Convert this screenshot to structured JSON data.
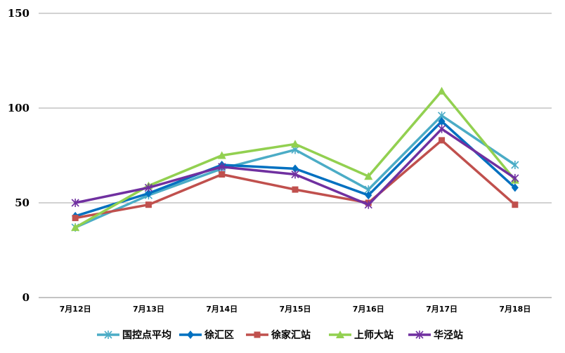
{
  "chart_data": {
    "type": "line",
    "categories": [
      "7月12日",
      "7月13日",
      "7月14日",
      "7月15日",
      "7月16日",
      "7月17日",
      "7月18日"
    ],
    "ylim": [
      0,
      150
    ],
    "yticks": [
      0,
      50,
      100,
      150
    ],
    "grid": true,
    "legend_position": "bottom",
    "series": [
      {
        "name": "国控点平均",
        "color": "#4BACC6",
        "marker": "asterisk",
        "values": [
          37,
          54,
          68,
          78,
          57,
          96,
          70
        ]
      },
      {
        "name": "徐汇区",
        "color": "#0070C0",
        "marker": "diamond",
        "values": [
          43,
          55,
          70,
          68,
          54,
          93,
          58
        ]
      },
      {
        "name": "徐家汇站",
        "color": "#C0504D",
        "marker": "square",
        "values": [
          42,
          49,
          65,
          57,
          50,
          83,
          49
        ]
      },
      {
        "name": "上师大站",
        "color": "#92D050",
        "marker": "triangle",
        "values": [
          37,
          59,
          75,
          81,
          64,
          109,
          62
        ]
      },
      {
        "name": "华泾站",
        "color": "#7030A0",
        "marker": "asterisk",
        "values": [
          50,
          58,
          69,
          65,
          49,
          89,
          63
        ]
      }
    ]
  }
}
